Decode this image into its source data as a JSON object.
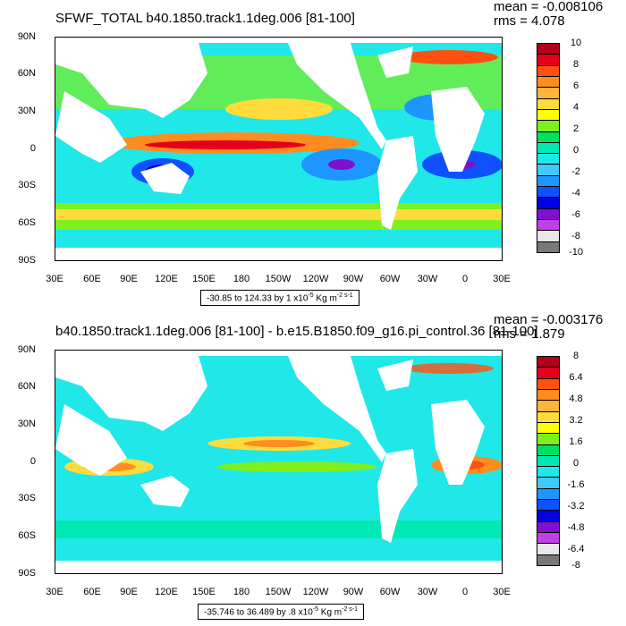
{
  "panels": [
    {
      "title": "SFWF_TOTAL b40.1850.track1.1deg.006 [81-100]",
      "mean": "mean = -0.008106",
      "rms": "rms = 4.078",
      "lat_labels": [
        "90N",
        "60N",
        "30N",
        "0",
        "30S",
        "60S",
        "90S"
      ],
      "lon_labels": [
        "30E",
        "60E",
        "90E",
        "120E",
        "150E",
        "180",
        "150W",
        "120W",
        "90W",
        "60W",
        "30W",
        "0",
        "30E"
      ],
      "range_text": "-30.85 to 124.33 by 1 x10",
      "range_exp1": "-5",
      "range_units": " Kg m",
      "range_exp2": "-2 s-1",
      "colorbar_labels": [
        "10",
        "8",
        "6",
        "4",
        "2",
        "0",
        "-2",
        "-4",
        "-6",
        "-8",
        "-10"
      ]
    },
    {
      "title": "b40.1850.track1.1deg.006 [81-100] - b.e15.B1850.f09_g16.pi_control.36 [81-100]",
      "mean": "mean = -0.003176",
      "rms": "rms = 1.879",
      "lat_labels": [
        "90N",
        "60N",
        "30N",
        "0",
        "30S",
        "60S",
        "90S"
      ],
      "lon_labels": [
        "30E",
        "60E",
        "90E",
        "120E",
        "150E",
        "180",
        "150W",
        "120W",
        "90W",
        "60W",
        "30W",
        "0",
        "30E"
      ],
      "range_text": "-35.746 to 36.489 by .8 x10",
      "range_exp1": "-5",
      "range_units": " Kg m",
      "range_exp2": "-2 s-1",
      "colorbar_labels": [
        "8",
        "6.4",
        "4.8",
        "3.2",
        "1.6",
        "0",
        "-1.6",
        "-3.2",
        "-4.8",
        "-6.4",
        "-8"
      ]
    }
  ],
  "colorbar_colors": [
    "#b0001a",
    "#e3001a",
    "#ff5010",
    "#ff8c20",
    "#ffb43c",
    "#ffdc3c",
    "#ffff00",
    "#7ef01e",
    "#00e060",
    "#00e8b4",
    "#20e8e8",
    "#40c8ff",
    "#1e96ff",
    "#1050ff",
    "#0000e0",
    "#8010d0",
    "#c040e8",
    "#e8e8e8",
    "#787878"
  ],
  "palette": {
    "ocean_base": "#20e8e8",
    "land": "#ffffff"
  }
}
